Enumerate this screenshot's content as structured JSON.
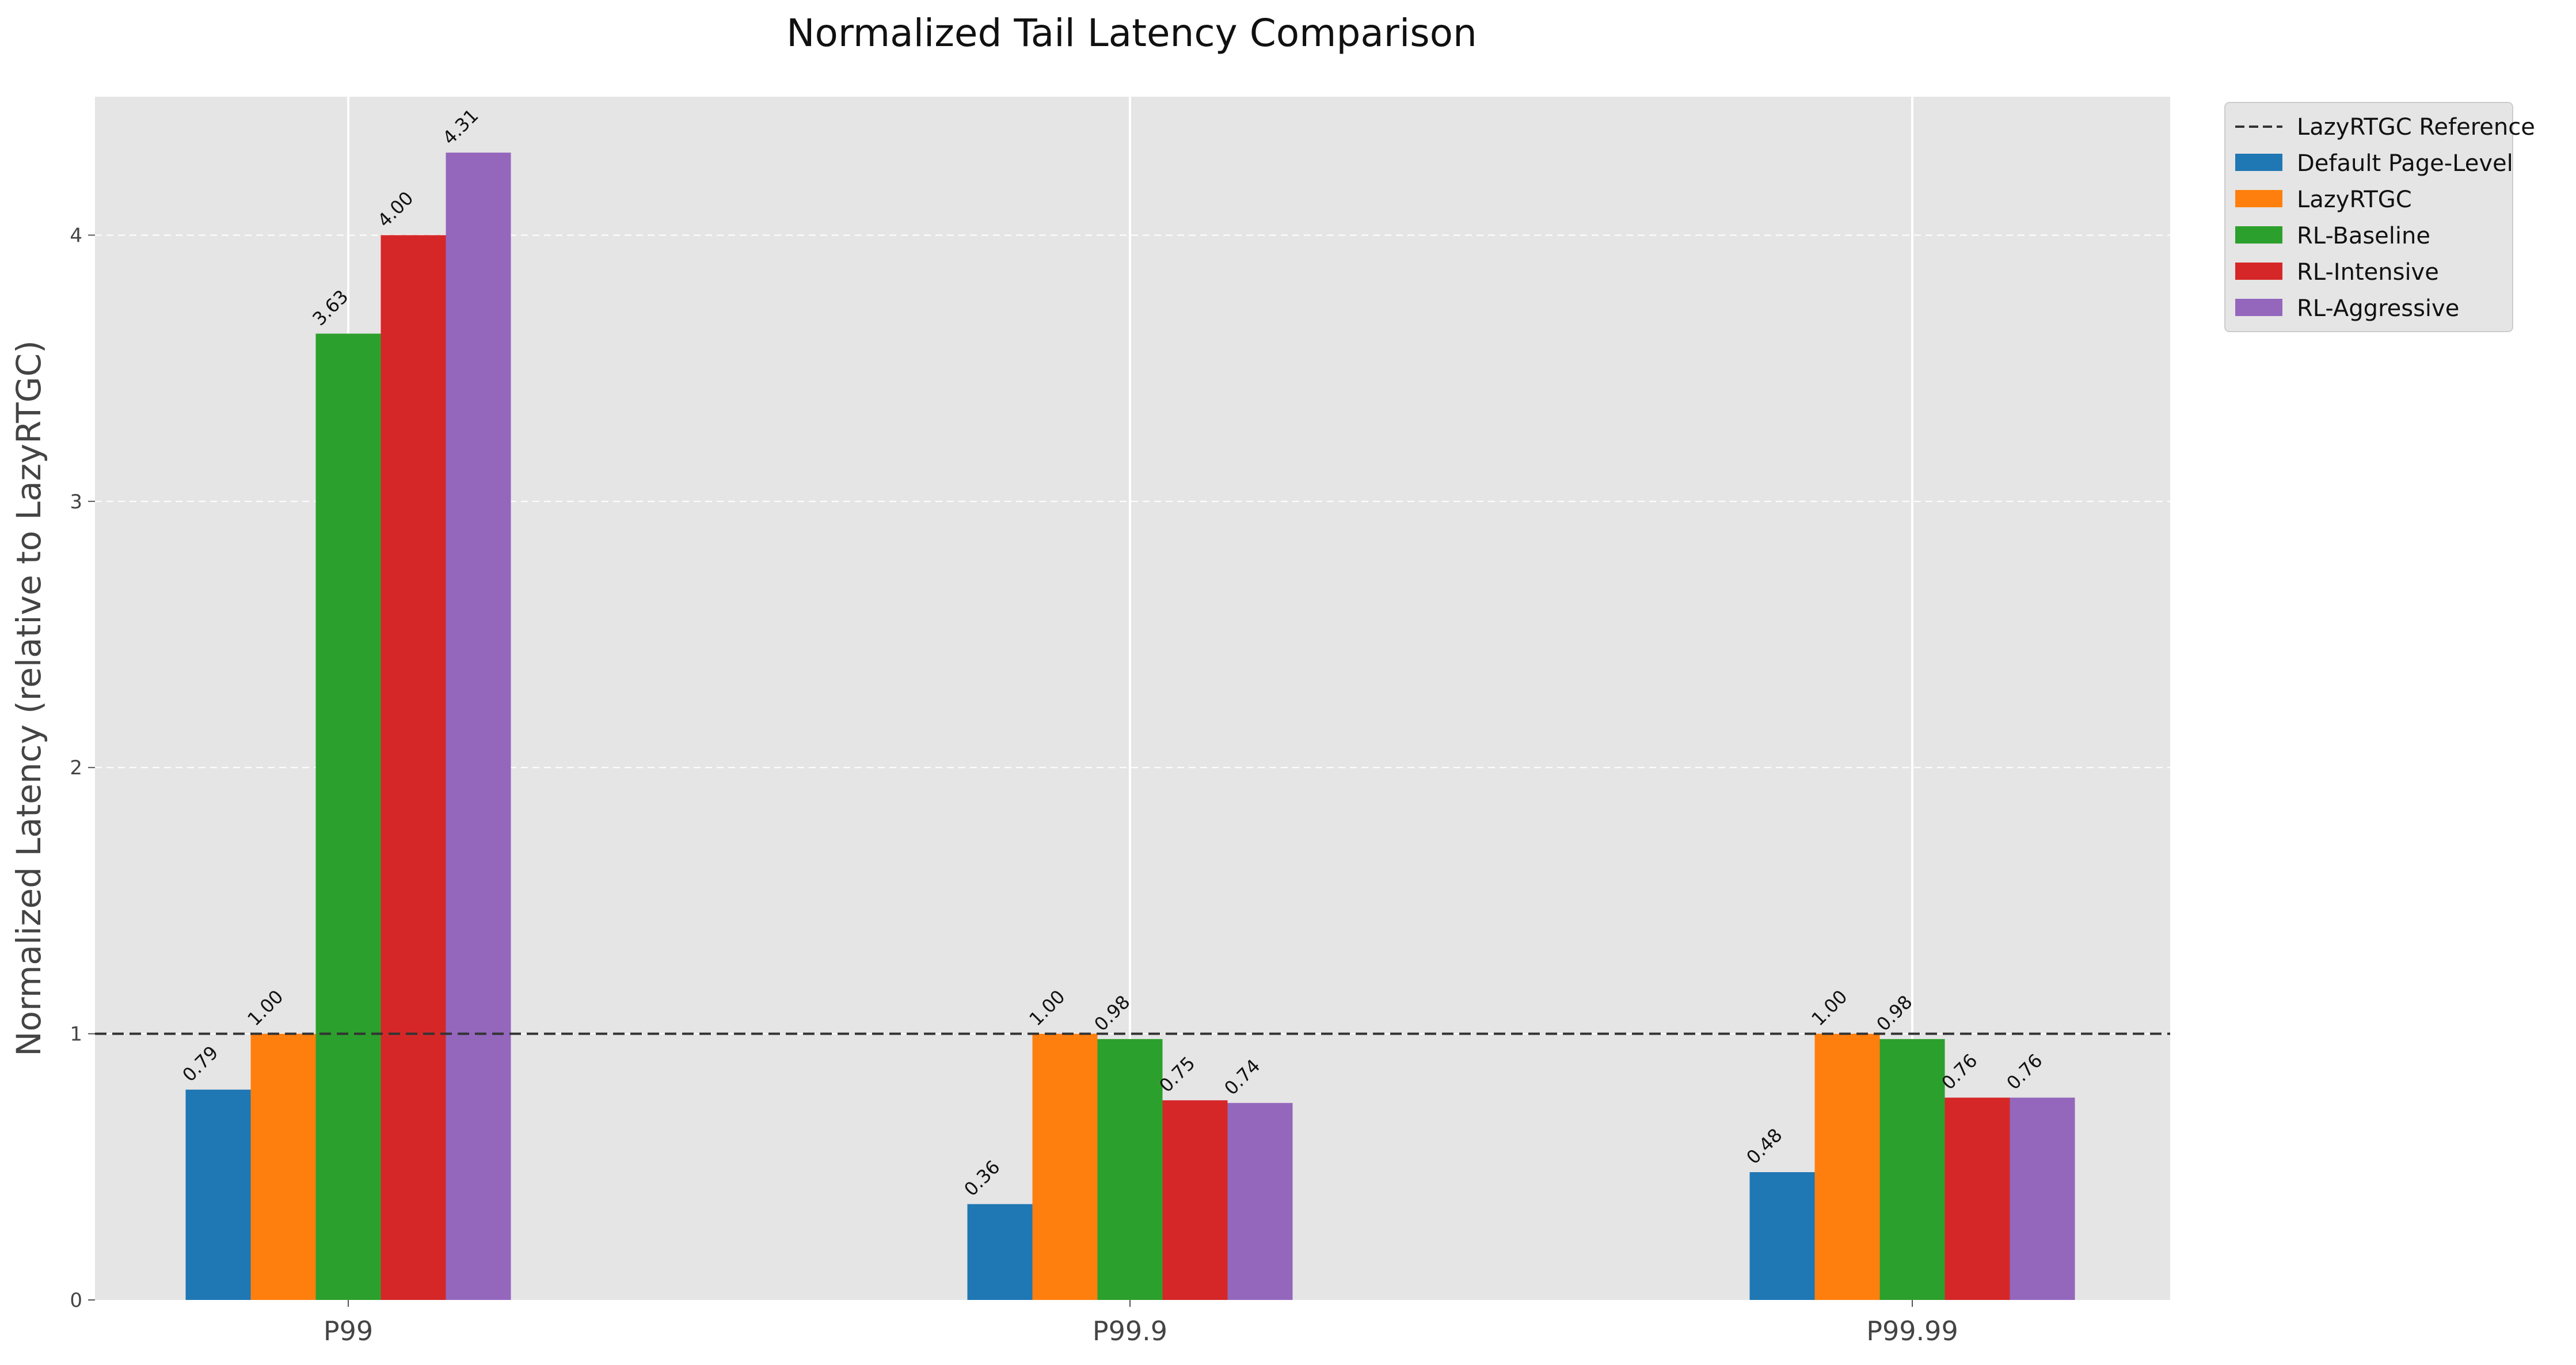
{
  "chart_data": {
    "type": "bar",
    "title": "Normalized Tail Latency Comparison",
    "xlabel": "",
    "ylabel": "Normalized Latency (relative to LazyRTGC)",
    "categories": [
      "P99",
      "P99.9",
      "P99.99"
    ],
    "ylim": [
      0,
      4.52
    ],
    "yticks": [
      0,
      1,
      2,
      3,
      4
    ],
    "grid": true,
    "legend_position": "outside-top-right",
    "series": [
      {
        "name": "Default Page-Level",
        "color": "#1f77b4",
        "values": [
          0.79,
          0.36,
          0.48
        ],
        "labels": [
          "0.79",
          "0.36",
          "0.48"
        ]
      },
      {
        "name": "LazyRTGC",
        "color": "#ff7f0e",
        "values": [
          1.0,
          1.0,
          1.0
        ],
        "labels": [
          "1.00",
          "1.00",
          "1.00"
        ]
      },
      {
        "name": "RL-Baseline",
        "color": "#2ca02c",
        "values": [
          3.63,
          0.98,
          0.98
        ],
        "labels": [
          "3.63",
          "0.98",
          "0.98"
        ]
      },
      {
        "name": "RL-Intensive",
        "color": "#d62728",
        "values": [
          4.0,
          0.75,
          0.76
        ],
        "labels": [
          "4.00",
          "0.75",
          "0.76"
        ]
      },
      {
        "name": "RL-Aggressive",
        "color": "#9467bd",
        "values": [
          4.31,
          0.74,
          0.76
        ],
        "labels": [
          "4.31",
          "0.74",
          "0.76"
        ]
      }
    ],
    "reference_line": {
      "name": "LazyRTGC Reference",
      "value": 1.0,
      "color": "#333333",
      "style": "dashed"
    }
  }
}
